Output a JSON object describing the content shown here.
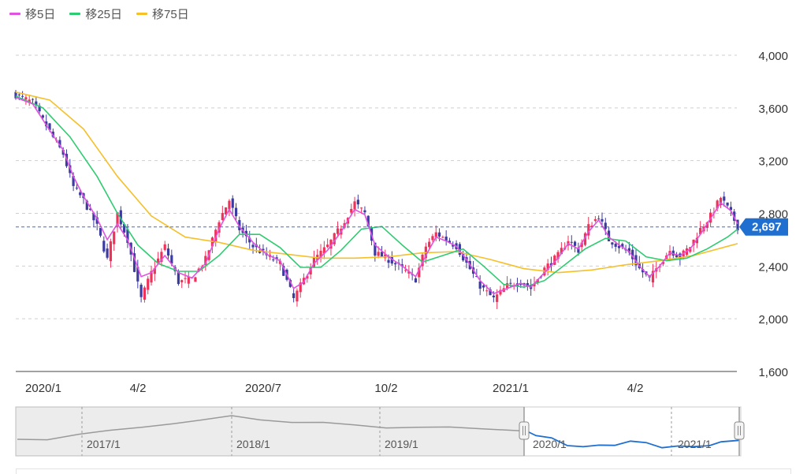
{
  "legend": [
    {
      "label": "移5日",
      "color": "#e052e0"
    },
    {
      "label": "移25日",
      "color": "#2ecc71"
    },
    {
      "label": "移75日",
      "color": "#f5c02a"
    }
  ],
  "colors": {
    "up": "#f0325a",
    "down": "#3c3ca0",
    "current_line": "#3a6fd8",
    "current_badge": "#1f6fd0",
    "grid": "#cfcfcf",
    "navigator_history": "#9a9a9a",
    "navigator_selected": "#1f6fd0"
  },
  "chart_data": {
    "type": "line",
    "ylim": [
      1600,
      4000
    ],
    "y_ticks": [
      {
        "value": 4000,
        "label": "4,000"
      },
      {
        "value": 3600,
        "label": "3,600"
      },
      {
        "value": 3200,
        "label": "3,200"
      },
      {
        "value": 2800,
        "label": "2,800"
      },
      {
        "value": 2400,
        "label": "2,400"
      },
      {
        "value": 2000,
        "label": "2,000"
      },
      {
        "value": 1600,
        "label": "1,600"
      }
    ],
    "x_ticks": [
      {
        "index": 0,
        "label": "2020/1"
      },
      {
        "index": 35,
        "label": "4/2"
      },
      {
        "index": 70,
        "label": "2020/7"
      },
      {
        "index": 105,
        "label": "10/2"
      },
      {
        "index": 140,
        "label": "2021/1"
      },
      {
        "index": 175,
        "label": "4/2"
      }
    ],
    "current": {
      "value": 2697,
      "label": "2,697"
    },
    "price_points": [
      [
        0,
        3700
      ],
      [
        5,
        3640
      ],
      [
        10,
        3420
      ],
      [
        14,
        3250
      ],
      [
        17,
        3000
      ],
      [
        20,
        2900
      ],
      [
        24,
        2700
      ],
      [
        27,
        2450
      ],
      [
        30,
        2800
      ],
      [
        33,
        2600
      ],
      [
        37,
        2150
      ],
      [
        40,
        2350
      ],
      [
        44,
        2550
      ],
      [
        48,
        2280
      ],
      [
        52,
        2300
      ],
      [
        56,
        2450
      ],
      [
        60,
        2750
      ],
      [
        63,
        2900
      ],
      [
        66,
        2680
      ],
      [
        70,
        2550
      ],
      [
        74,
        2480
      ],
      [
        78,
        2420
      ],
      [
        82,
        2150
      ],
      [
        85,
        2300
      ],
      [
        88,
        2450
      ],
      [
        92,
        2550
      ],
      [
        96,
        2700
      ],
      [
        100,
        2880
      ],
      [
        103,
        2800
      ],
      [
        106,
        2500
      ],
      [
        110,
        2450
      ],
      [
        114,
        2380
      ],
      [
        118,
        2300
      ],
      [
        121,
        2550
      ],
      [
        124,
        2650
      ],
      [
        127,
        2600
      ],
      [
        130,
        2550
      ],
      [
        133,
        2420
      ],
      [
        137,
        2250
      ],
      [
        141,
        2150
      ],
      [
        145,
        2250
      ],
      [
        149,
        2280
      ],
      [
        152,
        2230
      ],
      [
        156,
        2380
      ],
      [
        160,
        2480
      ],
      [
        163,
        2600
      ],
      [
        166,
        2520
      ],
      [
        169,
        2700
      ],
      [
        172,
        2780
      ],
      [
        175,
        2600
      ],
      [
        178,
        2550
      ],
      [
        181,
        2500
      ],
      [
        184,
        2380
      ],
      [
        187,
        2300
      ],
      [
        190,
        2420
      ],
      [
        193,
        2520
      ],
      [
        196,
        2470
      ],
      [
        199,
        2550
      ],
      [
        202,
        2680
      ],
      [
        205,
        2780
      ],
      [
        208,
        2920
      ],
      [
        211,
        2800
      ],
      [
        213,
        2697
      ]
    ],
    "ma5_points": [
      [
        0,
        3680
      ],
      [
        5,
        3630
      ],
      [
        10,
        3430
      ],
      [
        14,
        3280
      ],
      [
        17,
        3080
      ],
      [
        20,
        2930
      ],
      [
        24,
        2760
      ],
      [
        27,
        2600
      ],
      [
        30,
        2720
      ],
      [
        33,
        2600
      ],
      [
        37,
        2320
      ],
      [
        40,
        2350
      ],
      [
        44,
        2480
      ],
      [
        48,
        2350
      ],
      [
        52,
        2310
      ],
      [
        56,
        2420
      ],
      [
        60,
        2680
      ],
      [
        63,
        2830
      ],
      [
        66,
        2700
      ],
      [
        70,
        2580
      ],
      [
        74,
        2490
      ],
      [
        78,
        2440
      ],
      [
        82,
        2230
      ],
      [
        85,
        2280
      ],
      [
        88,
        2420
      ],
      [
        92,
        2520
      ],
      [
        96,
        2660
      ],
      [
        100,
        2830
      ],
      [
        103,
        2790
      ],
      [
        106,
        2560
      ],
      [
        110,
        2470
      ],
      [
        114,
        2400
      ],
      [
        118,
        2320
      ],
      [
        121,
        2480
      ],
      [
        124,
        2620
      ],
      [
        127,
        2590
      ],
      [
        130,
        2550
      ],
      [
        133,
        2450
      ],
      [
        137,
        2290
      ],
      [
        141,
        2190
      ],
      [
        145,
        2230
      ],
      [
        149,
        2270
      ],
      [
        152,
        2240
      ],
      [
        156,
        2350
      ],
      [
        160,
        2460
      ],
      [
        163,
        2570
      ],
      [
        166,
        2530
      ],
      [
        169,
        2660
      ],
      [
        172,
        2750
      ],
      [
        175,
        2620
      ],
      [
        178,
        2560
      ],
      [
        181,
        2510
      ],
      [
        184,
        2400
      ],
      [
        187,
        2320
      ],
      [
        190,
        2400
      ],
      [
        193,
        2500
      ],
      [
        196,
        2480
      ],
      [
        199,
        2530
      ],
      [
        202,
        2640
      ],
      [
        205,
        2760
      ],
      [
        208,
        2880
      ],
      [
        211,
        2820
      ],
      [
        213,
        2720
      ]
    ],
    "ma25_points": [
      [
        0,
        3690
      ],
      [
        8,
        3600
      ],
      [
        16,
        3380
      ],
      [
        24,
        3080
      ],
      [
        30,
        2800
      ],
      [
        36,
        2560
      ],
      [
        42,
        2420
      ],
      [
        48,
        2360
      ],
      [
        54,
        2360
      ],
      [
        60,
        2480
      ],
      [
        66,
        2640
      ],
      [
        72,
        2640
      ],
      [
        78,
        2540
      ],
      [
        84,
        2390
      ],
      [
        90,
        2390
      ],
      [
        96,
        2520
      ],
      [
        102,
        2680
      ],
      [
        108,
        2700
      ],
      [
        114,
        2560
      ],
      [
        120,
        2430
      ],
      [
        126,
        2480
      ],
      [
        132,
        2530
      ],
      [
        138,
        2400
      ],
      [
        144,
        2260
      ],
      [
        150,
        2240
      ],
      [
        156,
        2290
      ],
      [
        162,
        2410
      ],
      [
        168,
        2530
      ],
      [
        174,
        2610
      ],
      [
        180,
        2590
      ],
      [
        186,
        2470
      ],
      [
        192,
        2440
      ],
      [
        198,
        2460
      ],
      [
        204,
        2530
      ],
      [
        210,
        2620
      ],
      [
        213,
        2680
      ]
    ],
    "ma75_points": [
      [
        0,
        3720
      ],
      [
        10,
        3660
      ],
      [
        20,
        3440
      ],
      [
        30,
        3080
      ],
      [
        40,
        2780
      ],
      [
        50,
        2620
      ],
      [
        60,
        2580
      ],
      [
        70,
        2520
      ],
      [
        80,
        2490
      ],
      [
        90,
        2460
      ],
      [
        100,
        2460
      ],
      [
        110,
        2470
      ],
      [
        120,
        2500
      ],
      [
        130,
        2510
      ],
      [
        140,
        2450
      ],
      [
        150,
        2380
      ],
      [
        160,
        2350
      ],
      [
        170,
        2370
      ],
      [
        180,
        2410
      ],
      [
        190,
        2440
      ],
      [
        200,
        2480
      ],
      [
        210,
        2550
      ],
      [
        213,
        2570
      ]
    ]
  },
  "navigator": {
    "labels": [
      "2017/1",
      "2018/1",
      "2019/1",
      "2020/1",
      "2021/1"
    ]
  }
}
